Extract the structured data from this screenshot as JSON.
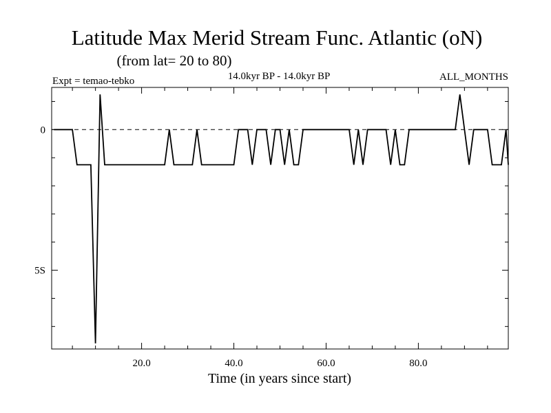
{
  "chart_data": {
    "type": "line",
    "title": "Latitude Max Merid Stream Func. Atlantic (oN)",
    "subtitle": "(from lat= 20 to 80)",
    "left_note": "Expt = temao-tebko",
    "center_note": "14.0kyr BP - 14.0kyr BP",
    "right_note": "ALL_MONTHS",
    "xlabel": "Time (in years since start)",
    "ylabel": "",
    "xlim": [
      0.5,
      99.5
    ],
    "ylim": [
      -7.8,
      1.5
    ],
    "x_ticks": [
      20,
      40,
      60,
      80
    ],
    "x_tick_labels": [
      "20.0",
      "40.0",
      "60.0",
      "80.0"
    ],
    "y_ticks": [
      0,
      -5
    ],
    "y_tick_labels": [
      "0",
      "5S"
    ],
    "zero_line": "dashed",
    "series": [
      {
        "name": "temao-tebko",
        "x": [
          1,
          2,
          3,
          4,
          5,
          6,
          7,
          8,
          9,
          10,
          11,
          12,
          13,
          14,
          15,
          16,
          17,
          18,
          19,
          20,
          21,
          22,
          23,
          24,
          25,
          26,
          27,
          28,
          29,
          30,
          31,
          32,
          33,
          34,
          35,
          36,
          37,
          38,
          39,
          40,
          41,
          42,
          43,
          44,
          45,
          46,
          47,
          48,
          49,
          50,
          51,
          52,
          53,
          54,
          55,
          56,
          57,
          58,
          59,
          60,
          61,
          62,
          63,
          64,
          65,
          66,
          67,
          68,
          69,
          70,
          71,
          72,
          73,
          74,
          75,
          76,
          77,
          78,
          79,
          80,
          81,
          82,
          83,
          84,
          85,
          86,
          87,
          88,
          89,
          90,
          91,
          92,
          93,
          94,
          95,
          96,
          97,
          98,
          99,
          100
        ],
        "values": [
          0,
          0,
          0,
          0,
          0,
          -1.25,
          -1.25,
          -1.25,
          -1.25,
          -7.6,
          1.25,
          -1.25,
          -1.25,
          -1.25,
          -1.25,
          -1.25,
          -1.25,
          -1.25,
          -1.25,
          -1.25,
          -1.25,
          -1.25,
          -1.25,
          -1.25,
          -1.25,
          0,
          -1.25,
          -1.25,
          -1.25,
          -1.25,
          -1.25,
          0,
          -1.25,
          -1.25,
          -1.25,
          -1.25,
          -1.25,
          -1.25,
          -1.25,
          -1.25,
          0,
          0,
          0,
          -1.25,
          0,
          0,
          0,
          -1.25,
          0,
          0,
          -1.25,
          0,
          -1.25,
          -1.25,
          0,
          0,
          0,
          0,
          0,
          0,
          0,
          0,
          0,
          0,
          0,
          -1.25,
          0,
          -1.25,
          0,
          0,
          0,
          0,
          0,
          -1.25,
          0,
          -1.25,
          -1.25,
          0,
          0,
          0,
          0,
          0,
          0,
          0,
          0,
          0,
          0,
          0,
          1.25,
          0,
          -1.25,
          0,
          0,
          0,
          0,
          -1.25,
          -1.25,
          -1.25,
          0,
          -1.25
        ]
      }
    ]
  }
}
